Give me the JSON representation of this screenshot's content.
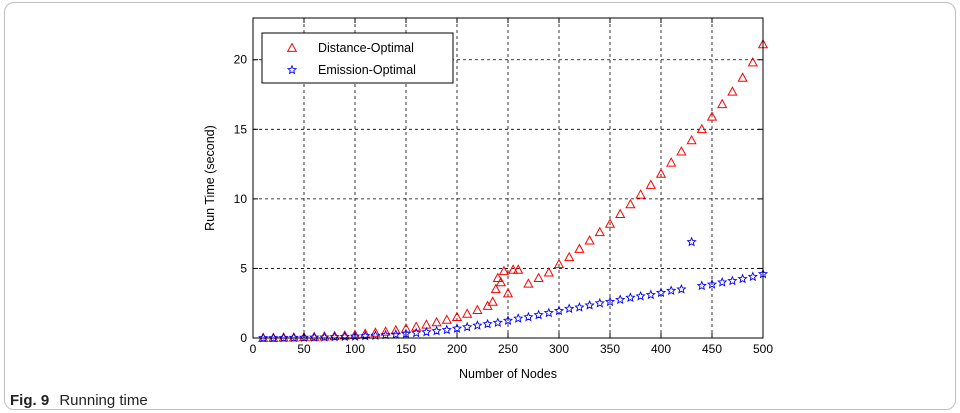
{
  "caption": {
    "label": "Fig. 9",
    "text": "Running time"
  },
  "chart_data": {
    "type": "scatter",
    "xlabel": "Number of Nodes",
    "ylabel": "Run Time (second)",
    "xlim": [
      0,
      500
    ],
    "ylim": [
      0,
      23
    ],
    "xticks": [
      0,
      50,
      100,
      150,
      200,
      250,
      300,
      350,
      400,
      450,
      500
    ],
    "yticks": [
      0,
      5,
      10,
      15,
      20
    ],
    "grid": true,
    "legend_position": "top-left",
    "series": [
      {
        "name": "Distance-Optimal",
        "marker": "triangle",
        "color": "#ff0000",
        "x": [
          10,
          20,
          30,
          40,
          50,
          60,
          70,
          80,
          90,
          100,
          110,
          120,
          130,
          140,
          150,
          160,
          170,
          180,
          190,
          200,
          210,
          220,
          230,
          235,
          238,
          240,
          243,
          246,
          250,
          255,
          260,
          270,
          280,
          290,
          300,
          310,
          320,
          330,
          340,
          350,
          360,
          370,
          380,
          390,
          400,
          410,
          420,
          430,
          440,
          450,
          460,
          470,
          480,
          490,
          500
        ],
        "y": [
          0.0,
          0.0,
          0.02,
          0.03,
          0.05,
          0.07,
          0.1,
          0.13,
          0.17,
          0.22,
          0.29,
          0.37,
          0.45,
          0.55,
          0.67,
          0.8,
          0.95,
          1.12,
          1.3,
          1.5,
          1.73,
          2.0,
          2.3,
          2.6,
          3.5,
          4.3,
          4.0,
          4.8,
          3.2,
          4.9,
          4.9,
          3.9,
          4.3,
          4.7,
          5.3,
          5.8,
          6.4,
          7.0,
          7.6,
          8.2,
          8.9,
          9.6,
          10.3,
          11.0,
          11.8,
          12.6,
          13.4,
          14.2,
          15.0,
          15.9,
          16.8,
          17.7,
          18.7,
          19.8,
          21.1
        ]
      },
      {
        "name": "Emission-Optimal",
        "marker": "star",
        "color": "#0000ff",
        "x": [
          10,
          20,
          30,
          40,
          50,
          60,
          70,
          80,
          90,
          100,
          110,
          120,
          130,
          140,
          150,
          160,
          170,
          180,
          190,
          200,
          210,
          220,
          230,
          240,
          250,
          260,
          270,
          280,
          290,
          300,
          310,
          320,
          330,
          340,
          350,
          360,
          370,
          380,
          390,
          400,
          410,
          420,
          430,
          440,
          450,
          460,
          470,
          480,
          490,
          500
        ],
        "y": [
          0.0,
          0.0,
          0.01,
          0.02,
          0.03,
          0.04,
          0.05,
          0.07,
          0.09,
          0.11,
          0.14,
          0.17,
          0.21,
          0.25,
          0.3,
          0.36,
          0.42,
          0.5,
          0.58,
          0.68,
          0.78,
          0.9,
          1.0,
          1.1,
          1.25,
          1.4,
          1.5,
          1.65,
          1.8,
          1.95,
          2.1,
          2.2,
          2.35,
          2.5,
          2.6,
          2.75,
          2.9,
          3.0,
          3.1,
          3.25,
          3.4,
          3.5,
          6.9,
          3.75,
          3.85,
          4.0,
          4.1,
          4.25,
          4.4,
          4.6
        ]
      }
    ]
  }
}
